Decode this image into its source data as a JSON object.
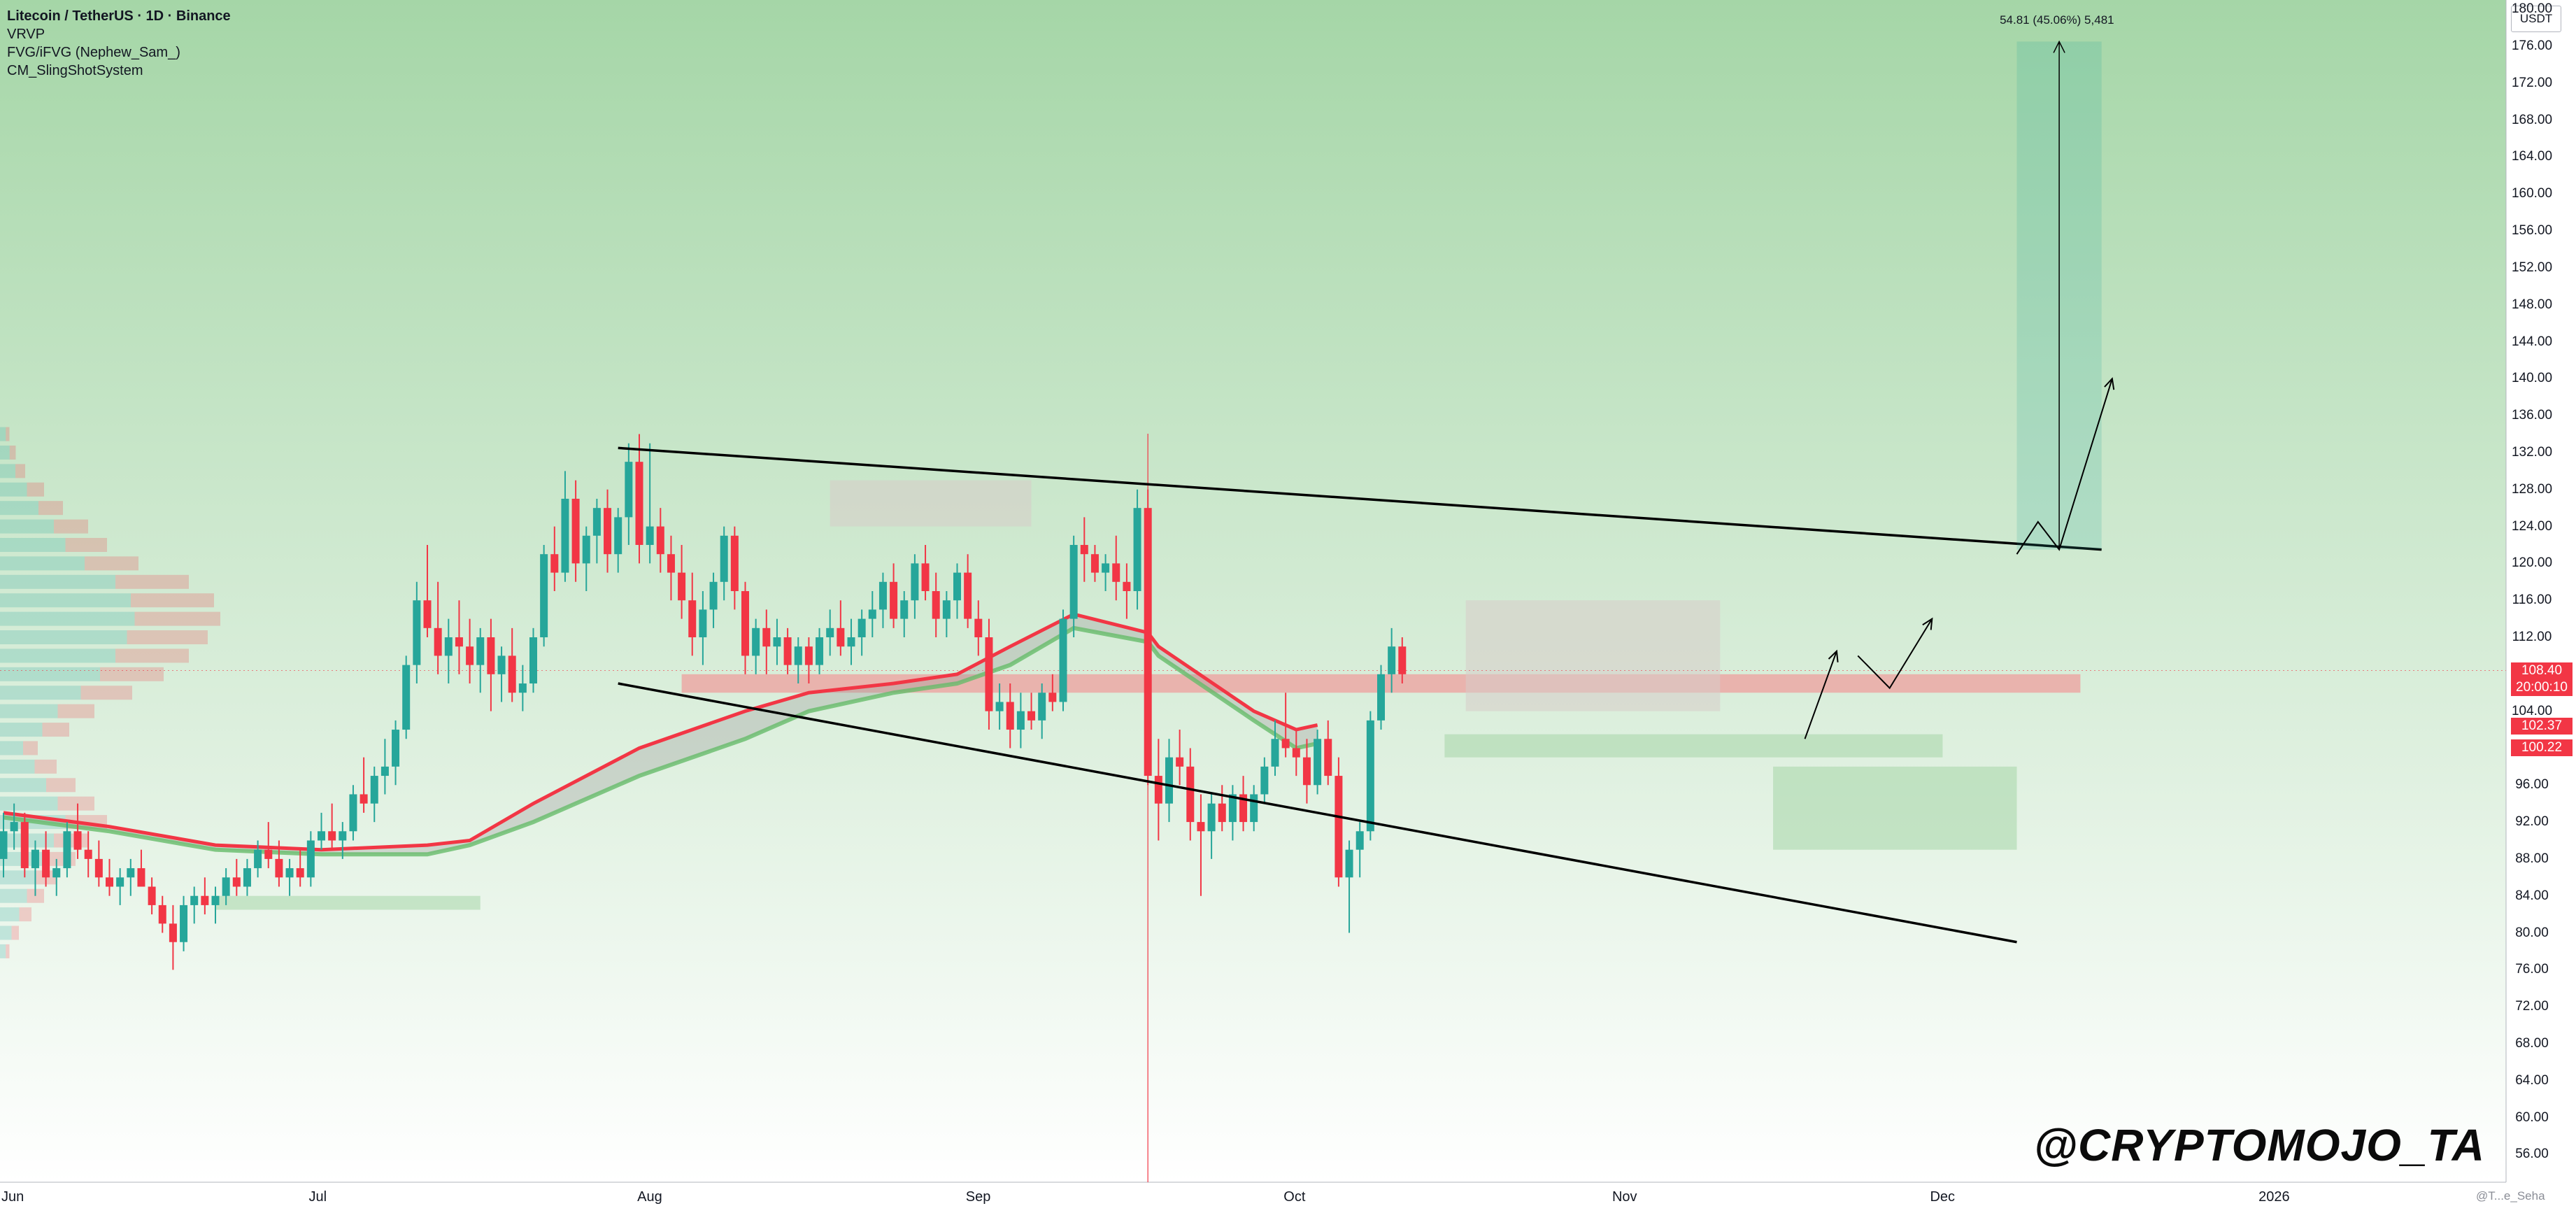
{
  "legend": {
    "symbol": "Litecoin / TetherUS · 1D · Binance",
    "indicators": [
      "VRVP",
      "FVG/iFVG (Nephew_Sam_)",
      "CM_SlingShotSystem"
    ]
  },
  "watermark": "@CRYPTOMOJO_TA",
  "credit": "@T...e_Seha",
  "axis_unit": "USDT",
  "measure_label": "54.81 (45.06%) 5,481",
  "price_labels": {
    "last": "108.40",
    "countdown": "20:00:10",
    "ema_fast": "102.37",
    "ema_slow": "100.22"
  },
  "colors": {
    "up": "#26a69a",
    "down": "#f23645",
    "bg_top": "#a5d6a7",
    "bg_bottom": "#ffffff",
    "ema_fast": "#f23645",
    "ema_slow": "#66bb6a"
  },
  "chart_data": {
    "type": "candlestick",
    "title": "Litecoin / TetherUS · 1D · Binance",
    "xlabel": "",
    "ylabel": "",
    "ylim": [
      53,
      181
    ],
    "x_ticks": [
      "Jun",
      "Jul",
      "Aug",
      "Sep",
      "Oct",
      "Nov",
      "Dec",
      "2026"
    ],
    "y_ticks": [
      "56.00",
      "60.00",
      "64.00",
      "68.00",
      "72.00",
      "76.00",
      "80.00",
      "84.00",
      "88.00",
      "92.00",
      "96.00",
      "100.00",
      "104.00",
      "108.00",
      "112.00",
      "116.00",
      "120.00",
      "124.00",
      "128.00",
      "132.00",
      "136.00",
      "140.00",
      "144.00",
      "148.00",
      "152.00",
      "156.00",
      "160.00",
      "164.00",
      "168.00",
      "172.00",
      "176.00",
      "180.00"
    ],
    "last_price": 108.4,
    "start": "2025-06-01",
    "candles_ohlc": [
      [
        88,
        93,
        86,
        91
      ],
      [
        91,
        94,
        89,
        92
      ],
      [
        92,
        93,
        86,
        87
      ],
      [
        87,
        90,
        84,
        89
      ],
      [
        89,
        91,
        85,
        86
      ],
      [
        86,
        88,
        84,
        87
      ],
      [
        87,
        92,
        86,
        91
      ],
      [
        91,
        94,
        88,
        89
      ],
      [
        89,
        91,
        86,
        88
      ],
      [
        88,
        90,
        85,
        86
      ],
      [
        86,
        88,
        84,
        85
      ],
      [
        85,
        87,
        83,
        86
      ],
      [
        86,
        88,
        84,
        87
      ],
      [
        87,
        89,
        85,
        85
      ],
      [
        85,
        86,
        82,
        83
      ],
      [
        83,
        84,
        80,
        81
      ],
      [
        81,
        83,
        76,
        79
      ],
      [
        79,
        84,
        78,
        83
      ],
      [
        83,
        85,
        81,
        84
      ],
      [
        84,
        86,
        82,
        83
      ],
      [
        83,
        85,
        81,
        84
      ],
      [
        84,
        87,
        83,
        86
      ],
      [
        86,
        88,
        84,
        85
      ],
      [
        85,
        88,
        84,
        87
      ],
      [
        87,
        90,
        86,
        89
      ],
      [
        89,
        92,
        87,
        88
      ],
      [
        88,
        90,
        85,
        86
      ],
      [
        86,
        88,
        84,
        87
      ],
      [
        87,
        89,
        85,
        86
      ],
      [
        86,
        91,
        85,
        90
      ],
      [
        90,
        93,
        89,
        91
      ],
      [
        91,
        94,
        89,
        90
      ],
      [
        90,
        92,
        88,
        91
      ],
      [
        91,
        96,
        90,
        95
      ],
      [
        95,
        99,
        93,
        94
      ],
      [
        94,
        98,
        92,
        97
      ],
      [
        97,
        101,
        95,
        98
      ],
      [
        98,
        103,
        96,
        102
      ],
      [
        102,
        110,
        101,
        109
      ],
      [
        109,
        118,
        107,
        116
      ],
      [
        116,
        122,
        112,
        113
      ],
      [
        113,
        118,
        108,
        110
      ],
      [
        110,
        114,
        107,
        112
      ],
      [
        112,
        116,
        108,
        111
      ],
      [
        111,
        114,
        107,
        109
      ],
      [
        109,
        113,
        106,
        112
      ],
      [
        112,
        114,
        104,
        108
      ],
      [
        108,
        111,
        105,
        110
      ],
      [
        110,
        113,
        105,
        106
      ],
      [
        106,
        109,
        104,
        107
      ],
      [
        107,
        113,
        106,
        112
      ],
      [
        112,
        122,
        111,
        121
      ],
      [
        121,
        124,
        117,
        119
      ],
      [
        119,
        130,
        118,
        127
      ],
      [
        127,
        129,
        118,
        120
      ],
      [
        120,
        124,
        117,
        123
      ],
      [
        123,
        127,
        120,
        126
      ],
      [
        126,
        128,
        119,
        121
      ],
      [
        121,
        126,
        119,
        125
      ],
      [
        125,
        133,
        122,
        131
      ],
      [
        131,
        134,
        120,
        122
      ],
      [
        122,
        133,
        120,
        124
      ],
      [
        124,
        126,
        119,
        121
      ],
      [
        121,
        123,
        116,
        119
      ],
      [
        119,
        122,
        114,
        116
      ],
      [
        116,
        119,
        110,
        112
      ],
      [
        112,
        117,
        109,
        115
      ],
      [
        115,
        119,
        113,
        118
      ],
      [
        118,
        124,
        116,
        123
      ],
      [
        123,
        124,
        115,
        117
      ],
      [
        117,
        118,
        108,
        110
      ],
      [
        110,
        114,
        108,
        113
      ],
      [
        113,
        115,
        108,
        111
      ],
      [
        111,
        114,
        109,
        112
      ],
      [
        112,
        113,
        108,
        109
      ],
      [
        109,
        112,
        107,
        111
      ],
      [
        111,
        112,
        107,
        109
      ],
      [
        109,
        113,
        108,
        112
      ],
      [
        112,
        115,
        110,
        113
      ],
      [
        113,
        116,
        110,
        111
      ],
      [
        111,
        114,
        109,
        112
      ],
      [
        112,
        115,
        110,
        114
      ],
      [
        114,
        117,
        112,
        115
      ],
      [
        115,
        119,
        113,
        118
      ],
      [
        118,
        120,
        113,
        114
      ],
      [
        114,
        117,
        112,
        116
      ],
      [
        116,
        121,
        114,
        120
      ],
      [
        120,
        122,
        116,
        117
      ],
      [
        117,
        119,
        112,
        114
      ],
      [
        114,
        117,
        112,
        116
      ],
      [
        116,
        120,
        114,
        119
      ],
      [
        119,
        121,
        113,
        114
      ],
      [
        114,
        116,
        110,
        112
      ],
      [
        112,
        114,
        102,
        104
      ],
      [
        104,
        107,
        102,
        105
      ],
      [
        105,
        107,
        100,
        102
      ],
      [
        102,
        106,
        100,
        104
      ],
      [
        104,
        106,
        102,
        103
      ],
      [
        103,
        107,
        101,
        106
      ],
      [
        106,
        108,
        104,
        105
      ],
      [
        105,
        115,
        104,
        114
      ],
      [
        114,
        123,
        112,
        122
      ],
      [
        122,
        125,
        118,
        121
      ],
      [
        121,
        122,
        118,
        119
      ],
      [
        119,
        121,
        117,
        120
      ],
      [
        120,
        123,
        116,
        118
      ],
      [
        118,
        120,
        114,
        117
      ],
      [
        117,
        128,
        115,
        126
      ],
      [
        126,
        128,
        96,
        97
      ],
      [
        97,
        101,
        90,
        94
      ],
      [
        94,
        101,
        92,
        99
      ],
      [
        99,
        102,
        96,
        98
      ],
      [
        98,
        100,
        90,
        92
      ],
      [
        92,
        95,
        84,
        91
      ],
      [
        91,
        95,
        88,
        94
      ],
      [
        94,
        96,
        91,
        92
      ],
      [
        92,
        96,
        90,
        95
      ],
      [
        95,
        97,
        91,
        92
      ],
      [
        92,
        96,
        91,
        95
      ],
      [
        95,
        99,
        94,
        98
      ],
      [
        98,
        103,
        97,
        101
      ],
      [
        101,
        106,
        99,
        100
      ],
      [
        100,
        102,
        97,
        99
      ],
      [
        99,
        101,
        94,
        96
      ],
      [
        96,
        102,
        95,
        101
      ],
      [
        101,
        103,
        96,
        97
      ],
      [
        97,
        99,
        85,
        86
      ],
      [
        86,
        90,
        80,
        89
      ],
      [
        89,
        92,
        86,
        91
      ],
      [
        91,
        104,
        90,
        103
      ],
      [
        103,
        109,
        102,
        108
      ],
      [
        108,
        113,
        106,
        111
      ],
      [
        111,
        112,
        107,
        108
      ]
    ],
    "ema_fast": [
      [
        0,
        93
      ],
      [
        10,
        91.5
      ],
      [
        20,
        89.5
      ],
      [
        30,
        89
      ],
      [
        40,
        89.5
      ],
      [
        44,
        90
      ],
      [
        50,
        94
      ],
      [
        60,
        100
      ],
      [
        70,
        104
      ],
      [
        76,
        106
      ],
      [
        84,
        107
      ],
      [
        90,
        108
      ],
      [
        95,
        111
      ],
      [
        101,
        114.5
      ],
      [
        108,
        112.5
      ],
      [
        109,
        111
      ],
      [
        118,
        104
      ],
      [
        122,
        102
      ],
      [
        124,
        102.5
      ]
    ],
    "ema_slow": [
      [
        0,
        92.5
      ],
      [
        10,
        91
      ],
      [
        20,
        89
      ],
      [
        30,
        88.5
      ],
      [
        40,
        88.5
      ],
      [
        44,
        89.5
      ],
      [
        50,
        92
      ],
      [
        60,
        97
      ],
      [
        70,
        101
      ],
      [
        76,
        104
      ],
      [
        84,
        106
      ],
      [
        90,
        107
      ],
      [
        95,
        109
      ],
      [
        101,
        113
      ],
      [
        108,
        111.5
      ],
      [
        109,
        110
      ],
      [
        118,
        103
      ],
      [
        122,
        100
      ],
      [
        124,
        100.5
      ]
    ],
    "trendlines": [
      {
        "from": [
          58,
          132.5
        ],
        "to": [
          198,
          121.5
        ]
      },
      {
        "from": [
          58,
          107
        ],
        "to": [
          190,
          79
        ]
      }
    ],
    "zones": [
      {
        "type": "supply",
        "from": [
          64,
          108
        ],
        "to": [
          196,
          106
        ]
      },
      {
        "type": "supply",
        "from": [
          78,
          129
        ],
        "to": [
          97,
          124
        ]
      },
      {
        "type": "supply",
        "from": [
          138,
          116
        ],
        "to": [
          162,
          104
        ]
      },
      {
        "type": "demand",
        "from": [
          136,
          101.5
        ],
        "to": [
          183,
          99
        ]
      },
      {
        "type": "demand",
        "from": [
          167,
          98
        ],
        "to": [
          190,
          89
        ]
      },
      {
        "type": "demand",
        "from": [
          20,
          84
        ],
        "to": [
          45,
          82.5
        ]
      }
    ],
    "projection": {
      "from": [
        190,
        121.5
      ],
      "to": [
        198,
        176.5
      ]
    },
    "projection_arrows": [
      [
        [
          190,
          121
        ],
        [
          192,
          124.5
        ],
        [
          194,
          121.5
        ],
        [
          199,
          140
        ]
      ],
      [
        [
          170,
          101
        ],
        [
          173,
          110.5
        ]
      ],
      [
        [
          175,
          110
        ],
        [
          178,
          106.5
        ],
        [
          182,
          114
        ]
      ]
    ],
    "event_line_x": 108
  }
}
